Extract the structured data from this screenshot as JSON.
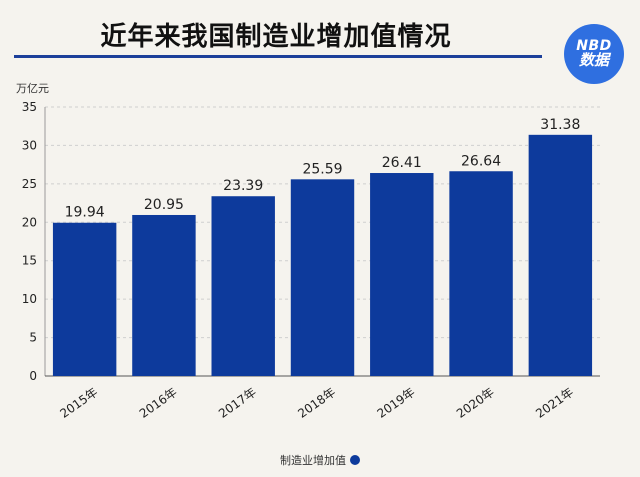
{
  "header": {
    "title": "近年来我国制造业增加值情况",
    "logo_line1": "NBD",
    "logo_line2": "数据"
  },
  "colors": {
    "bar": "#0d3a9c",
    "accent_rule": "#1c3f9a",
    "badge": "#2f6fe0",
    "background": "#f5f3ee"
  },
  "chart_data": {
    "type": "bar",
    "title": "近年来我国制造业增加值情况",
    "unit_label": "万亿元",
    "categories": [
      "2015年",
      "2016年",
      "2017年",
      "2018年",
      "2019年",
      "2020年",
      "2021年"
    ],
    "series": [
      {
        "name": "制造业增加值",
        "values": [
          19.94,
          20.95,
          23.39,
          25.59,
          26.41,
          26.64,
          31.38
        ]
      }
    ],
    "data_labels": [
      "19.94",
      "20.95",
      "23.39",
      "25.59",
      "26.41",
      "26.64",
      "31.38"
    ],
    "ylim": [
      0,
      35
    ],
    "yticks": [
      0,
      5,
      10,
      15,
      20,
      25,
      30,
      35
    ],
    "grid": true,
    "legend": "bottom-center"
  }
}
